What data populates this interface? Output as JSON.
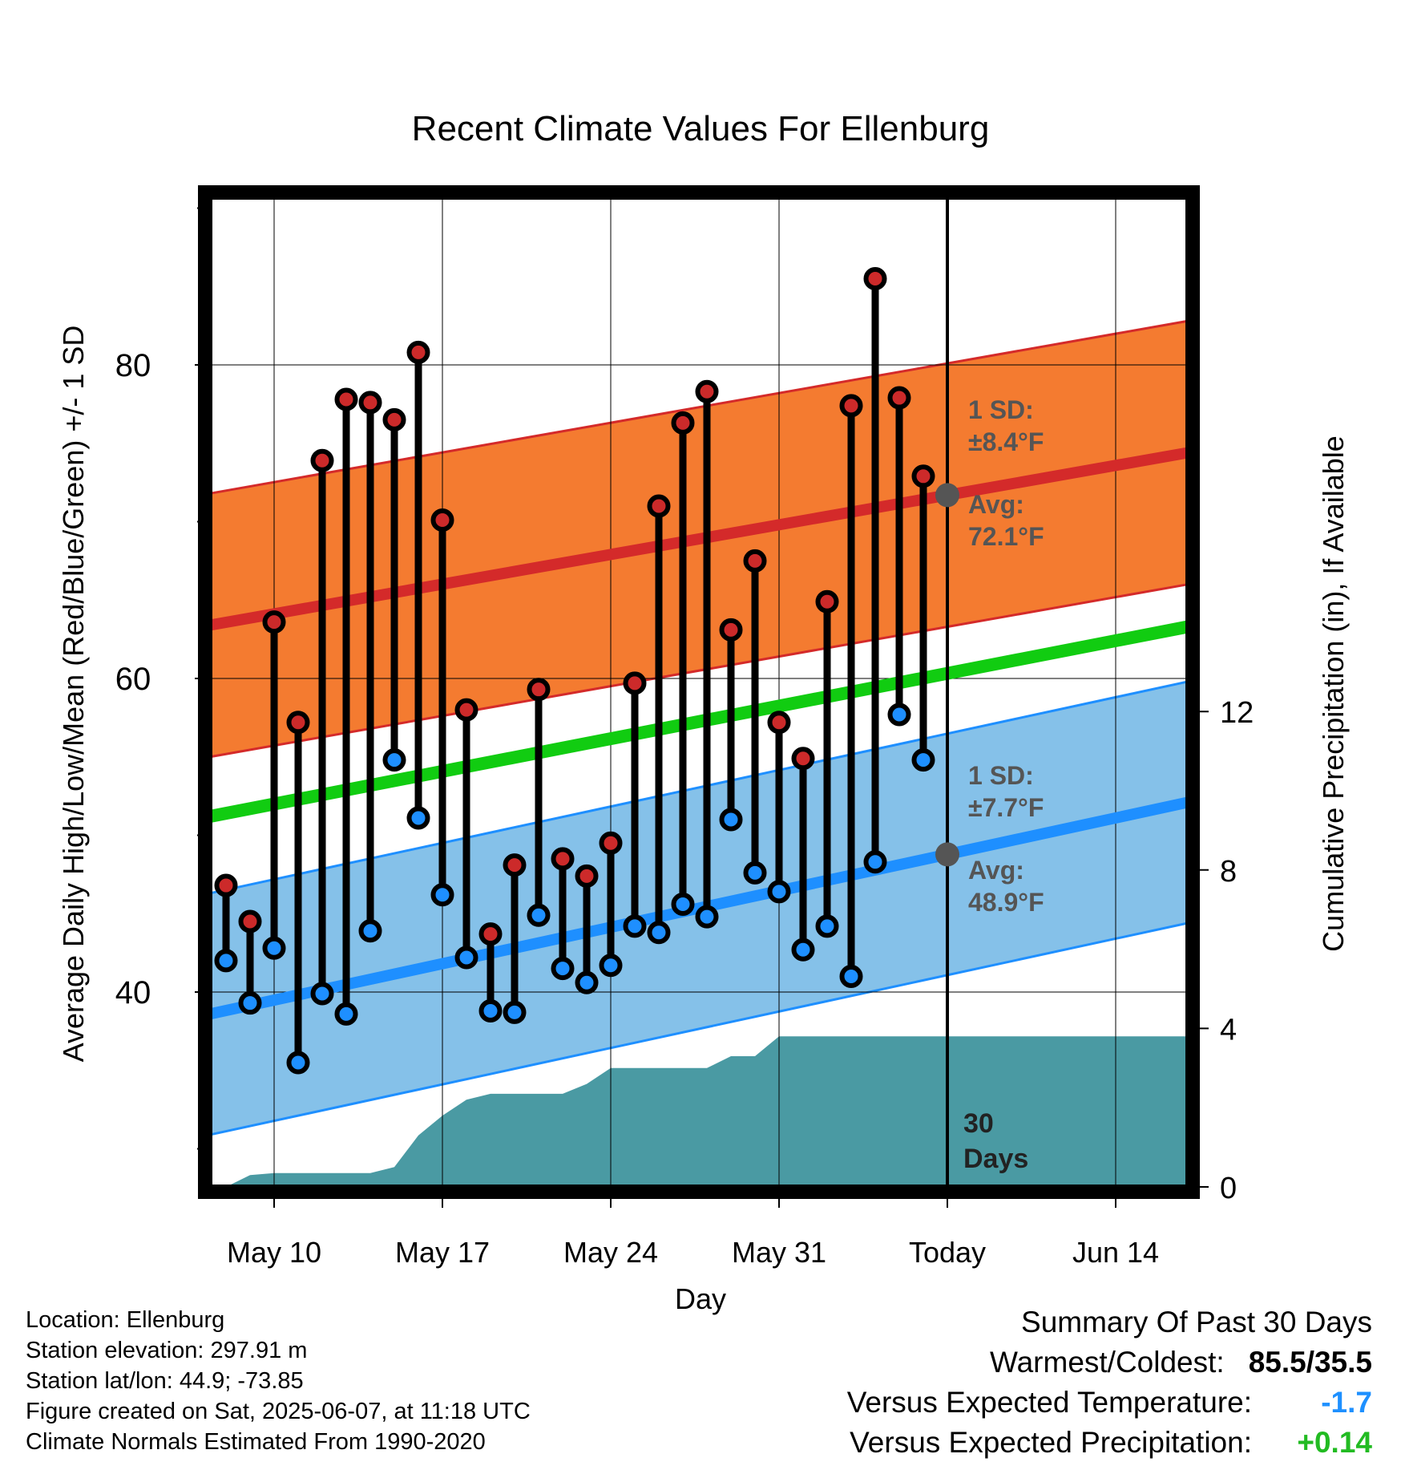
{
  "chart_data": {
    "type": "line",
    "title": "Recent Climate Values For Ellenburg",
    "xlabel": "Day",
    "ylabel": "Average Daily High/Low/Mean (Red/Blue/Green) +/- 1 SD",
    "y2label": "Cumulative Precipitation (in), If Available",
    "ylim": [
      28,
      90
    ],
    "yticks": [
      40,
      60,
      80
    ],
    "y2lim": [
      0,
      30
    ],
    "y2ticks": [
      0,
      4,
      8,
      12
    ],
    "x_start": "May 7",
    "x_tick_labels": [
      {
        "day": 3,
        "label": "May 10"
      },
      {
        "day": 10,
        "label": "May 17"
      },
      {
        "day": 17,
        "label": "May 24"
      },
      {
        "day": 24,
        "label": "May 31"
      },
      {
        "day": 31,
        "label": "Today"
      },
      {
        "day": 38,
        "label": "Jun 14"
      }
    ],
    "grid": true,
    "daily_highs": [
      46.8,
      44.5,
      63.6,
      57.2,
      73.9,
      77.8,
      77.6,
      76.5,
      80.8,
      70.1,
      58.0,
      43.7,
      48.1,
      59.3,
      48.5,
      47.4,
      49.5,
      59.7,
      71.0,
      76.3,
      78.3,
      63.1,
      67.5,
      57.2,
      54.9,
      64.9,
      77.4,
      85.5,
      77.9,
      72.9
    ],
    "daily_lows": [
      42.0,
      39.3,
      42.8,
      35.5,
      39.9,
      38.6,
      43.9,
      54.8,
      51.1,
      46.2,
      42.2,
      38.8,
      38.7,
      44.9,
      41.5,
      40.6,
      41.7,
      44.2,
      43.8,
      45.6,
      44.8,
      51.0,
      47.6,
      46.4,
      42.7,
      44.2,
      41.0,
      48.3,
      57.7,
      54.8
    ],
    "normal_high": {
      "start": 63.4,
      "end": 74.4
    },
    "normal_mean": {
      "start": 51.2,
      "end": 63.3
    },
    "normal_low": {
      "start": 38.6,
      "end": 52.1
    },
    "precip_cumulative": [
      0.0,
      0.0,
      0.3,
      0.35,
      0.35,
      0.35,
      0.35,
      0.35,
      0.5,
      1.3,
      1.8,
      2.2,
      2.35,
      2.35,
      2.35,
      2.35,
      2.6,
      3.0,
      3.0,
      3.0,
      3.0,
      3.0,
      3.3,
      3.3,
      3.8,
      3.8,
      3.8,
      3.8,
      3.8,
      3.8,
      3.8,
      3.8,
      3.8,
      3.8,
      3.8,
      3.8,
      3.8,
      3.8,
      3.8,
      3.8,
      3.8
    ],
    "annotations": {
      "high_sd_label": "1 SD:",
      "high_sd_value": "±8.4°F",
      "high_avg_label": "Avg:",
      "high_avg_value": "72.1°F",
      "low_sd_label": "1 SD:",
      "low_sd_value": "±7.7°F",
      "low_avg_label": "Avg:",
      "low_avg_value": "48.9°F",
      "days_number": "30",
      "days_word": "Days"
    },
    "colors": {
      "high_band": "#f47b30",
      "high_line": "#d42a2a",
      "mean_line": "#11cc11",
      "low_band": "#85c1e9",
      "low_line": "#1e8fff",
      "precip": "#4a9aa3",
      "high_dot": "#cc2a2a",
      "low_dot": "#1e8fff"
    }
  },
  "info": {
    "location": "Location: Ellenburg",
    "elevation": "Station elevation: 297.91 m",
    "latlon": "Station lat/lon: 44.9; -73.85",
    "created": "Figure created on Sat, 2025-06-07, at 11:18 UTC",
    "normals": "Climate Normals Estimated From 1990-2020"
  },
  "summary": {
    "heading": "Summary Of Past 30 Days",
    "warmest_label": "Warmest/Coldest:",
    "warmest_value": "85.5/35.5",
    "temp_label": "Versus Expected Temperature:",
    "temp_value": "-1.7",
    "precip_label": "Versus Expected Precipitation:",
    "precip_value": "+0.14"
  }
}
